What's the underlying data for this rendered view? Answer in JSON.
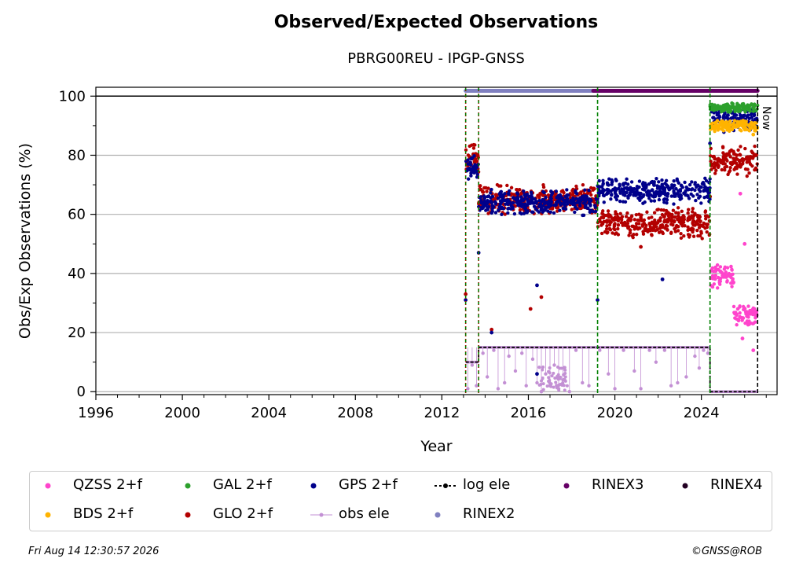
{
  "title": "Observed/Expected Observations",
  "subtitle": "PBRG00REU - IPGP-GNSS",
  "footer": {
    "timestamp": "Fri Aug 14 12:30:57 2026",
    "credit": "©GNSS@ROB"
  },
  "now_label": "Now",
  "colors": {
    "qzss": "#ff44cc",
    "bds": "#ffb300",
    "gal": "#2ca02c",
    "glo": "#b30000",
    "gps": "#00008b",
    "obs_ele": "#c390d4",
    "log_ele": "#000000",
    "rinex2": "#8080c0",
    "rinex3": "#660066",
    "rinex4": "#220022",
    "event_line": "#008000"
  },
  "legend": [
    {
      "key": "qzss",
      "label": "QZSS 2+f",
      "kind": "dot"
    },
    {
      "key": "gal",
      "label": "GAL 2+f",
      "kind": "dot"
    },
    {
      "key": "gps",
      "label": "GPS 2+f",
      "kind": "dot"
    },
    {
      "key": "log_ele",
      "label": "log ele",
      "kind": "dashdot"
    },
    {
      "key": "rinex3",
      "label": "RINEX3",
      "kind": "dot"
    },
    {
      "key": "rinex4",
      "label": "RINEX4",
      "kind": "dot"
    },
    {
      "key": "bds",
      "label": "BDS 2+f",
      "kind": "dot"
    },
    {
      "key": "glo",
      "label": "GLO 2+f",
      "kind": "dot"
    },
    {
      "key": "obs_ele",
      "label": "obs ele",
      "kind": "line"
    },
    {
      "key": "rinex2",
      "label": "RINEX2",
      "kind": "dot"
    }
  ],
  "chart_data": {
    "type": "scatter",
    "xlabel": "Year",
    "ylabel": "Obs/Exp Observations (%)",
    "xlim": [
      1996,
      2027.5
    ],
    "ylim": [
      -1,
      103
    ],
    "xticks": [
      1996,
      2000,
      2004,
      2008,
      2012,
      2016,
      2020,
      2024
    ],
    "yticks": [
      0,
      20,
      40,
      60,
      80,
      100
    ],
    "grid": "horizontal",
    "legend_position": "bottom",
    "reference_line_y": 100,
    "now_x": 2026.6,
    "event_lines_x": [
      2013.1,
      2013.7,
      2019.2,
      2024.4
    ],
    "rinex_bars": [
      {
        "name": "RINEX2",
        "x_start": 2013.1,
        "x_end": 2019.0,
        "y": 101.8
      },
      {
        "name": "RINEX3",
        "x_start": 2019.0,
        "x_end": 2026.6,
        "y": 101.8
      }
    ],
    "log_ele_steps": [
      {
        "x_start": 2013.1,
        "x_end": 2013.7,
        "y": 10
      },
      {
        "x_start": 2013.7,
        "x_end": 2024.4,
        "y": 15
      },
      {
        "x_start": 2024.4,
        "x_end": 2026.6,
        "y": 0
      }
    ],
    "series": [
      {
        "name": "GPS 2+f",
        "key": "gps",
        "segments": [
          {
            "x": [
              2013.1,
              2013.7
            ],
            "y": [
              76,
              76
            ]
          },
          {
            "x": [
              2013.7,
              2019.2
            ],
            "y": [
              64,
              64
            ]
          },
          {
            "x": [
              2019.2,
              2024.4
            ],
            "y": [
              68,
              68
            ]
          },
          {
            "x": [
              2024.4,
              2026.6
            ],
            "y": [
              92,
              92
            ]
          }
        ],
        "outliers": [
          [
            2013.1,
            31
          ],
          [
            2013.7,
            47
          ],
          [
            2014.3,
            20
          ],
          [
            2016.4,
            36
          ],
          [
            2016.4,
            6
          ],
          [
            2019.2,
            31
          ],
          [
            2022.2,
            38
          ],
          [
            2024.4,
            84
          ]
        ]
      },
      {
        "name": "GLO 2+f",
        "key": "glo",
        "segments": [
          {
            "x": [
              2013.1,
              2013.7
            ],
            "y": [
              79,
              79
            ]
          },
          {
            "x": [
              2013.7,
              2019.2
            ],
            "y": [
              65,
              65
            ]
          },
          {
            "x": [
              2019.2,
              2024.4
            ],
            "y": [
              57,
              57
            ]
          },
          {
            "x": [
              2024.4,
              2026.6
            ],
            "y": [
              78,
              78
            ]
          }
        ],
        "outliers": [
          [
            2013.1,
            33
          ],
          [
            2014.3,
            21
          ],
          [
            2016.1,
            28
          ],
          [
            2016.6,
            32
          ],
          [
            2021.2,
            49
          ],
          [
            2024.4,
            66
          ]
        ]
      },
      {
        "name": "GAL 2+f",
        "key": "gal",
        "segments": [
          {
            "x": [
              2024.4,
              2026.6
            ],
            "y": [
              96,
              96
            ]
          }
        ],
        "outliers": []
      },
      {
        "name": "BDS 2+f",
        "key": "bds",
        "segments": [
          {
            "x": [
              2024.4,
              2026.6
            ],
            "y": [
              90,
              90
            ]
          }
        ],
        "outliers": [
          [
            2026.4,
            87
          ]
        ]
      },
      {
        "name": "QZSS 2+f",
        "key": "qzss",
        "segments": [
          {
            "x": [
              2024.4,
              2025.5
            ],
            "y": [
              39,
              39
            ]
          },
          {
            "x": [
              2025.5,
              2026.6
            ],
            "y": [
              26,
              26
            ]
          }
        ],
        "outliers": [
          [
            2025.8,
            67
          ],
          [
            2026.0,
            50
          ],
          [
            2025.9,
            18
          ],
          [
            2026.4,
            14
          ]
        ]
      },
      {
        "name": "obs ele",
        "key": "obs_ele",
        "points": [
          [
            2013.2,
            1
          ],
          [
            2013.4,
            9
          ],
          [
            2013.6,
            2
          ],
          [
            2013.9,
            13
          ],
          [
            2014.1,
            5
          ],
          [
            2014.4,
            14
          ],
          [
            2014.6,
            1
          ],
          [
            2014.9,
            3
          ],
          [
            2015.1,
            12
          ],
          [
            2015.4,
            7
          ],
          [
            2015.7,
            13
          ],
          [
            2015.9,
            2
          ],
          [
            2016.2,
            11
          ],
          [
            2016.4,
            3
          ],
          [
            2016.6,
            0
          ],
          [
            2016.8,
            6
          ],
          [
            2017.0,
            2
          ],
          [
            2017.2,
            9
          ],
          [
            2017.4,
            1
          ],
          [
            2017.6,
            4
          ],
          [
            2017.9,
            0
          ],
          [
            2018.2,
            14
          ],
          [
            2018.5,
            3
          ],
          [
            2018.8,
            2
          ],
          [
            2019.3,
            14
          ],
          [
            2019.7,
            6
          ],
          [
            2020.0,
            1
          ],
          [
            2020.4,
            14
          ],
          [
            2020.9,
            7
          ],
          [
            2021.2,
            1
          ],
          [
            2021.6,
            14
          ],
          [
            2021.9,
            10
          ],
          [
            2022.3,
            14
          ],
          [
            2022.6,
            2
          ],
          [
            2022.9,
            3
          ],
          [
            2023.3,
            5
          ],
          [
            2023.7,
            12
          ],
          [
            2023.9,
            8
          ],
          [
            2024.1,
            14
          ],
          [
            2024.3,
            13
          ]
        ]
      }
    ]
  }
}
